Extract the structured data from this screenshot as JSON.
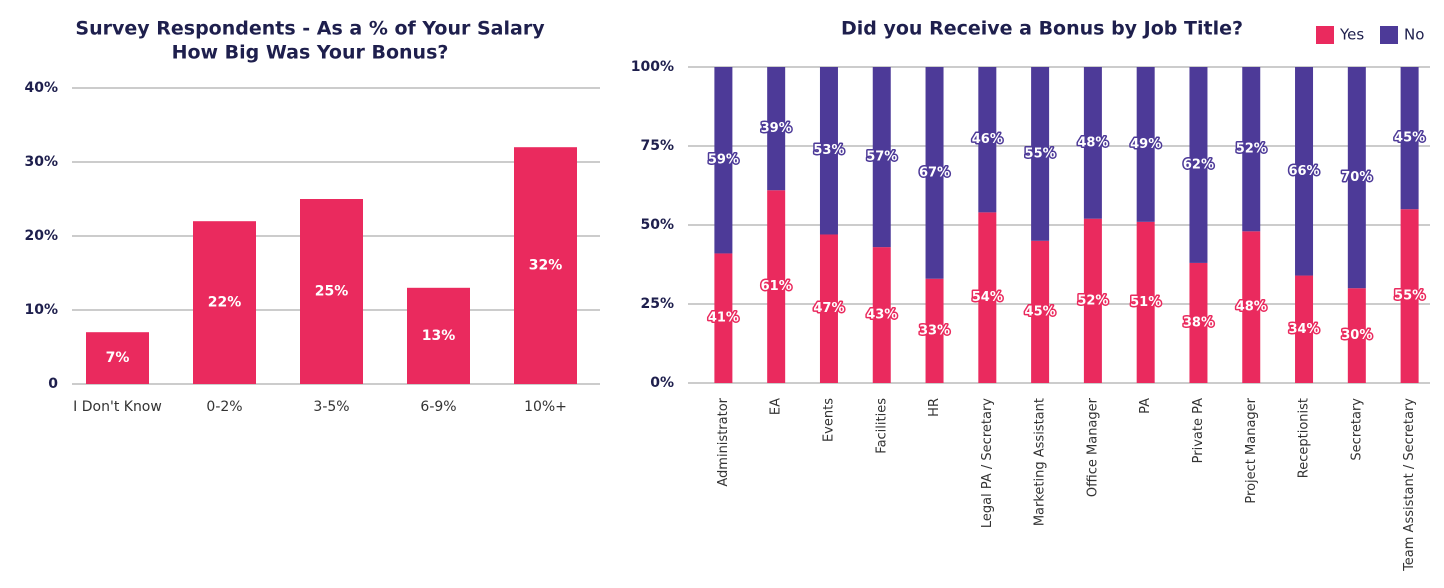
{
  "chart_data": [
    {
      "type": "bar",
      "title": [
        "Survey Respondents - As a % of Your Salary",
        "How Big Was Your Bonus?"
      ],
      "categories": [
        "I Don't Know",
        "0-2%",
        "3-5%",
        "6-9%",
        "10%+"
      ],
      "values": [
        7,
        22,
        25,
        13,
        32
      ],
      "value_labels": [
        "7%",
        "22%",
        "25%",
        "13%",
        "32%"
      ],
      "color": "#ea2a5e",
      "ylim": [
        0,
        40
      ],
      "yticks": [
        0,
        {
          "value": 10,
          "label": "10%"
        },
        {
          "value": 20,
          "label": "20%"
        },
        {
          "value": 30,
          "label": "30%"
        },
        {
          "value": 40,
          "label": "40%"
        }
      ],
      "grid": true
    },
    {
      "type": "stacked_bar",
      "title": "Did you Receive a Bonus by Job Title?",
      "categories": [
        "Administrator",
        "EA",
        "Events",
        "Facilities",
        "HR",
        "Legal PA / Secretary",
        "Marketing Assistant",
        "Office Manager",
        "PA",
        "Private PA",
        "Project Manager",
        "Receptionist",
        "Secretary",
        "Team Assistant / Secretary"
      ],
      "series": [
        {
          "name": "Yes",
          "color": "#ea2a5e",
          "values": [
            41,
            61,
            47,
            43,
            33,
            54,
            45,
            52,
            51,
            38,
            48,
            34,
            30,
            55
          ],
          "value_labels": [
            "41%",
            "61%",
            "47%",
            "43%",
            "33%",
            "54%",
            "45%",
            "52%",
            "51%",
            "38%",
            "48%",
            "34%",
            "30%",
            "55%"
          ]
        },
        {
          "name": "No",
          "color": "#4d3a98",
          "values": [
            59,
            39,
            53,
            57,
            67,
            46,
            55,
            48,
            49,
            62,
            52,
            66,
            70,
            45
          ],
          "value_labels": [
            "59%",
            "39%",
            "53%",
            "57%",
            "67%",
            "46%",
            "55%",
            "48%",
            "49%",
            "62%",
            "52%",
            "66%",
            "70%",
            "45%"
          ]
        }
      ],
      "ylim": [
        0,
        100
      ],
      "yticks": [
        {
          "value": 0,
          "label": "0%"
        },
        {
          "value": 25,
          "label": "25%"
        },
        {
          "value": 50,
          "label": "50%"
        },
        {
          "value": 75,
          "label": "75%"
        },
        {
          "value": 100,
          "label": "100%"
        }
      ],
      "grid": true,
      "legend": "top-right"
    }
  ]
}
